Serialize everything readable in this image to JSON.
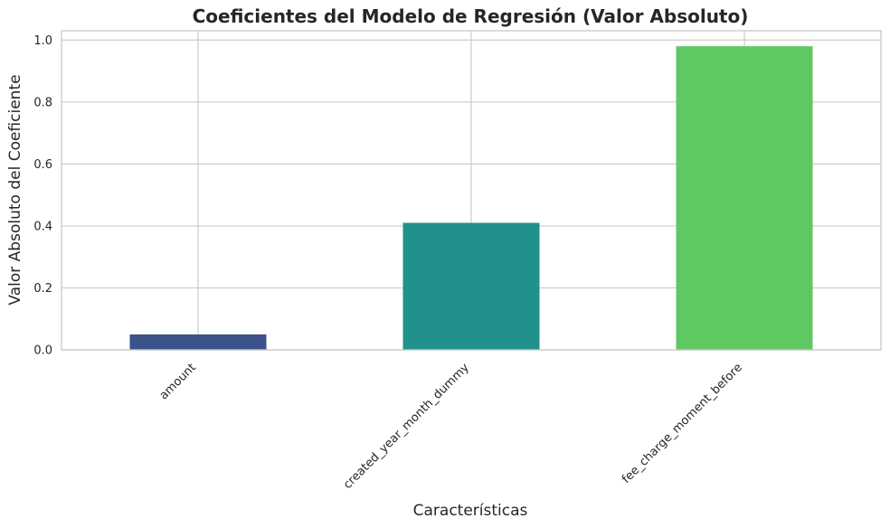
{
  "chart_data": {
    "type": "bar",
    "title": "Coeficientes del Modelo de Regresión (Valor Absoluto)",
    "xlabel": "Características",
    "ylabel": "Valor Absoluto del Coeficiente",
    "categories": [
      "amount",
      "created_year_month_dummy",
      "fee_charge_moment_before"
    ],
    "values": [
      0.05,
      0.41,
      0.98
    ],
    "colors": [
      "#3b528b",
      "#21918c",
      "#5ec962"
    ],
    "ylim": [
      0,
      1.03
    ],
    "yticks": [
      0.0,
      0.2,
      0.4,
      0.6,
      0.8,
      1.0
    ],
    "ytick_labels": [
      "0.0",
      "0.2",
      "0.4",
      "0.6",
      "0.8",
      "1.0"
    ],
    "grid": true,
    "xtick_rotation": -45
  }
}
